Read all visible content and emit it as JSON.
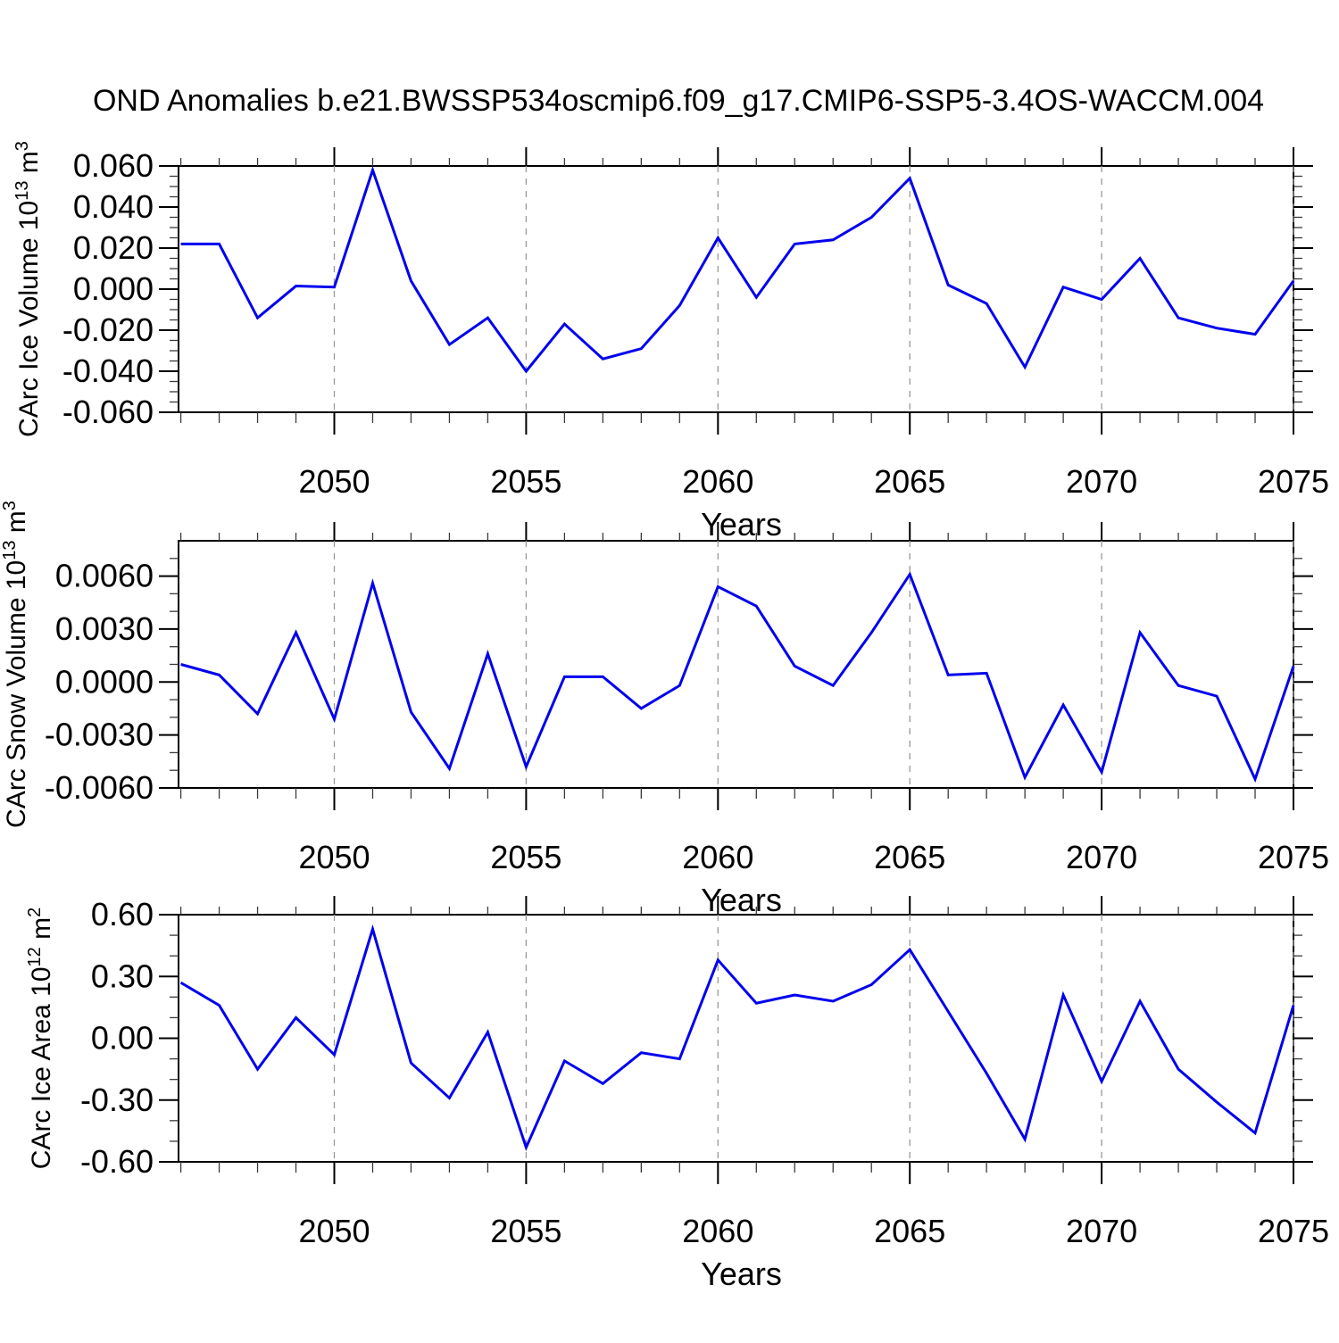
{
  "title": "OND Anomalies b.e21.BWSSP534oscmip6.f09_g17.CMIP6-SSP5-3.4OS-WACCM.004",
  "line_color": "#0000ee",
  "grid_color": "#999999",
  "axis_color": "#000000",
  "chart_data": [
    {
      "id": "ice-volume",
      "type": "line",
      "ylabel": "CArc Ice Volume 10^13 m^3",
      "ylabel_parts": [
        {
          "t": "CArc Ice Volume 10"
        },
        {
          "t": "13",
          "sup": true
        },
        {
          "t": " m"
        },
        {
          "t": "3",
          "sup": true
        }
      ],
      "xlabel": "Years",
      "x": [
        2046,
        2047,
        2048,
        2049,
        2050,
        2051,
        2052,
        2053,
        2054,
        2055,
        2056,
        2057,
        2058,
        2059,
        2060,
        2061,
        2062,
        2063,
        2064,
        2065,
        2066,
        2067,
        2068,
        2069,
        2070,
        2071,
        2072,
        2073,
        2074,
        2075
      ],
      "values": [
        0.022,
        0.022,
        -0.014,
        0.0015,
        0.001,
        0.058,
        0.004,
        -0.027,
        -0.014,
        -0.04,
        -0.017,
        -0.034,
        -0.029,
        -0.008,
        0.025,
        -0.004,
        0.022,
        0.024,
        0.035,
        0.054,
        0.002,
        -0.007,
        -0.038,
        0.001,
        -0.005,
        0.015,
        -0.014,
        -0.019,
        -0.022,
        0.004
      ],
      "xlim": [
        2045.94,
        2075
      ],
      "ylim": [
        -0.06,
        0.06
      ],
      "xticks": [
        2050,
        2055,
        2060,
        2065,
        2070,
        2075
      ],
      "xminor_step": 1,
      "yticks": {
        "values": [
          0.06,
          0.04,
          0.02,
          0.0,
          -0.02,
          -0.04,
          -0.06
        ],
        "labels": [
          "0.060",
          "0.040",
          "0.020",
          "0.000",
          "-0.020",
          "-0.040",
          "-0.060"
        ]
      },
      "yminor_step": 0.005,
      "grid": "vertical-dashed-at-major-xticks",
      "legend": "none"
    },
    {
      "id": "snow-volume",
      "type": "line",
      "ylabel": "CArc Snow Volume 10^13 m^3",
      "ylabel_parts": [
        {
          "t": "CArc Snow Volume 10"
        },
        {
          "t": "13",
          "sup": true
        },
        {
          "t": " m"
        },
        {
          "t": "3",
          "sup": true
        }
      ],
      "xlabel": "Years",
      "x": [
        2046,
        2047,
        2048,
        2049,
        2050,
        2051,
        2052,
        2053,
        2054,
        2055,
        2056,
        2057,
        2058,
        2059,
        2060,
        2061,
        2062,
        2063,
        2064,
        2065,
        2066,
        2067,
        2068,
        2069,
        2070,
        2071,
        2072,
        2073,
        2074,
        2075
      ],
      "values": [
        0.001,
        0.0004,
        -0.0018,
        0.0028,
        -0.0021,
        0.0056,
        -0.0017,
        -0.0049,
        0.0016,
        -0.0048,
        0.0003,
        0.0003,
        -0.0015,
        -0.0002,
        0.0054,
        0.0043,
        0.0009,
        -0.0002,
        0.0028,
        0.0061,
        0.0004,
        0.0005,
        -0.0054,
        -0.0013,
        -0.0051,
        0.0028,
        -0.0002,
        -0.0008,
        -0.0055,
        0.0009
      ],
      "xlim": [
        2045.94,
        2075
      ],
      "ylim": [
        -0.006,
        0.008
      ],
      "xticks": [
        2050,
        2055,
        2060,
        2065,
        2070,
        2075
      ],
      "xminor_step": 1,
      "yticks": {
        "values": [
          0.006,
          0.003,
          0.0,
          -0.003,
          -0.006
        ],
        "labels": [
          "0.0060",
          "0.0030",
          "0.0000",
          "-0.0030",
          "-0.0060"
        ]
      },
      "yminor_step": 0.001,
      "grid": "vertical-dashed-at-major-xticks",
      "legend": "none"
    },
    {
      "id": "ice-area",
      "type": "line",
      "ylabel": "CArc Ice Area 10^12 m^2",
      "ylabel_parts": [
        {
          "t": "CArc Ice Area 10"
        },
        {
          "t": "12",
          "sup": true
        },
        {
          "t": " m"
        },
        {
          "t": "2",
          "sup": true
        }
      ],
      "xlabel": "Years",
      "x": [
        2046,
        2047,
        2048,
        2049,
        2050,
        2051,
        2052,
        2053,
        2054,
        2055,
        2056,
        2057,
        2058,
        2059,
        2060,
        2061,
        2062,
        2063,
        2064,
        2065,
        2066,
        2067,
        2068,
        2069,
        2070,
        2071,
        2072,
        2073,
        2074,
        2075
      ],
      "values": [
        0.27,
        0.16,
        -0.15,
        0.1,
        -0.08,
        0.53,
        -0.12,
        -0.29,
        0.03,
        -0.53,
        -0.11,
        -0.22,
        -0.07,
        -0.1,
        0.38,
        0.17,
        0.21,
        0.18,
        0.26,
        0.43,
        0.13,
        -0.17,
        -0.49,
        0.21,
        -0.21,
        0.18,
        -0.15,
        -0.31,
        -0.46,
        0.16
      ],
      "xlim": [
        2045.94,
        2075
      ],
      "ylim": [
        -0.6,
        0.6
      ],
      "xticks": [
        2050,
        2055,
        2060,
        2065,
        2070,
        2075
      ],
      "xminor_step": 1,
      "yticks": {
        "values": [
          0.6,
          0.3,
          0.0,
          -0.3,
          -0.6
        ],
        "labels": [
          "0.60",
          "0.30",
          "0.00",
          "-0.30",
          "-0.60"
        ]
      },
      "yminor_step": 0.1,
      "grid": "vertical-dashed-at-major-xticks",
      "legend": "none"
    }
  ]
}
